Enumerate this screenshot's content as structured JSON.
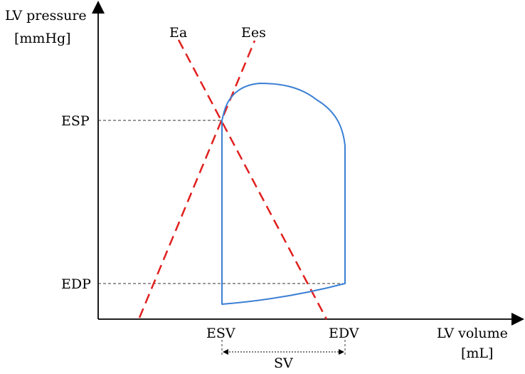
{
  "axes": {
    "y_label_line1": "LV pressure",
    "y_label_line2": "[mmHg]",
    "x_label_line1": "LV volume",
    "x_label_line2": "[mL]"
  },
  "pressure_ticks": {
    "esp": "ESP",
    "edp": "EDP"
  },
  "volume_ticks": {
    "esv": "ESV",
    "edv": "EDV"
  },
  "lines": {
    "ea": "Ea",
    "ees": "Ees"
  },
  "stroke_volume": "SV",
  "colors": {
    "loop": "#3a7fd5",
    "elastance_lines": "#e0201e",
    "axes": "#000000",
    "guides": "#333333"
  }
}
